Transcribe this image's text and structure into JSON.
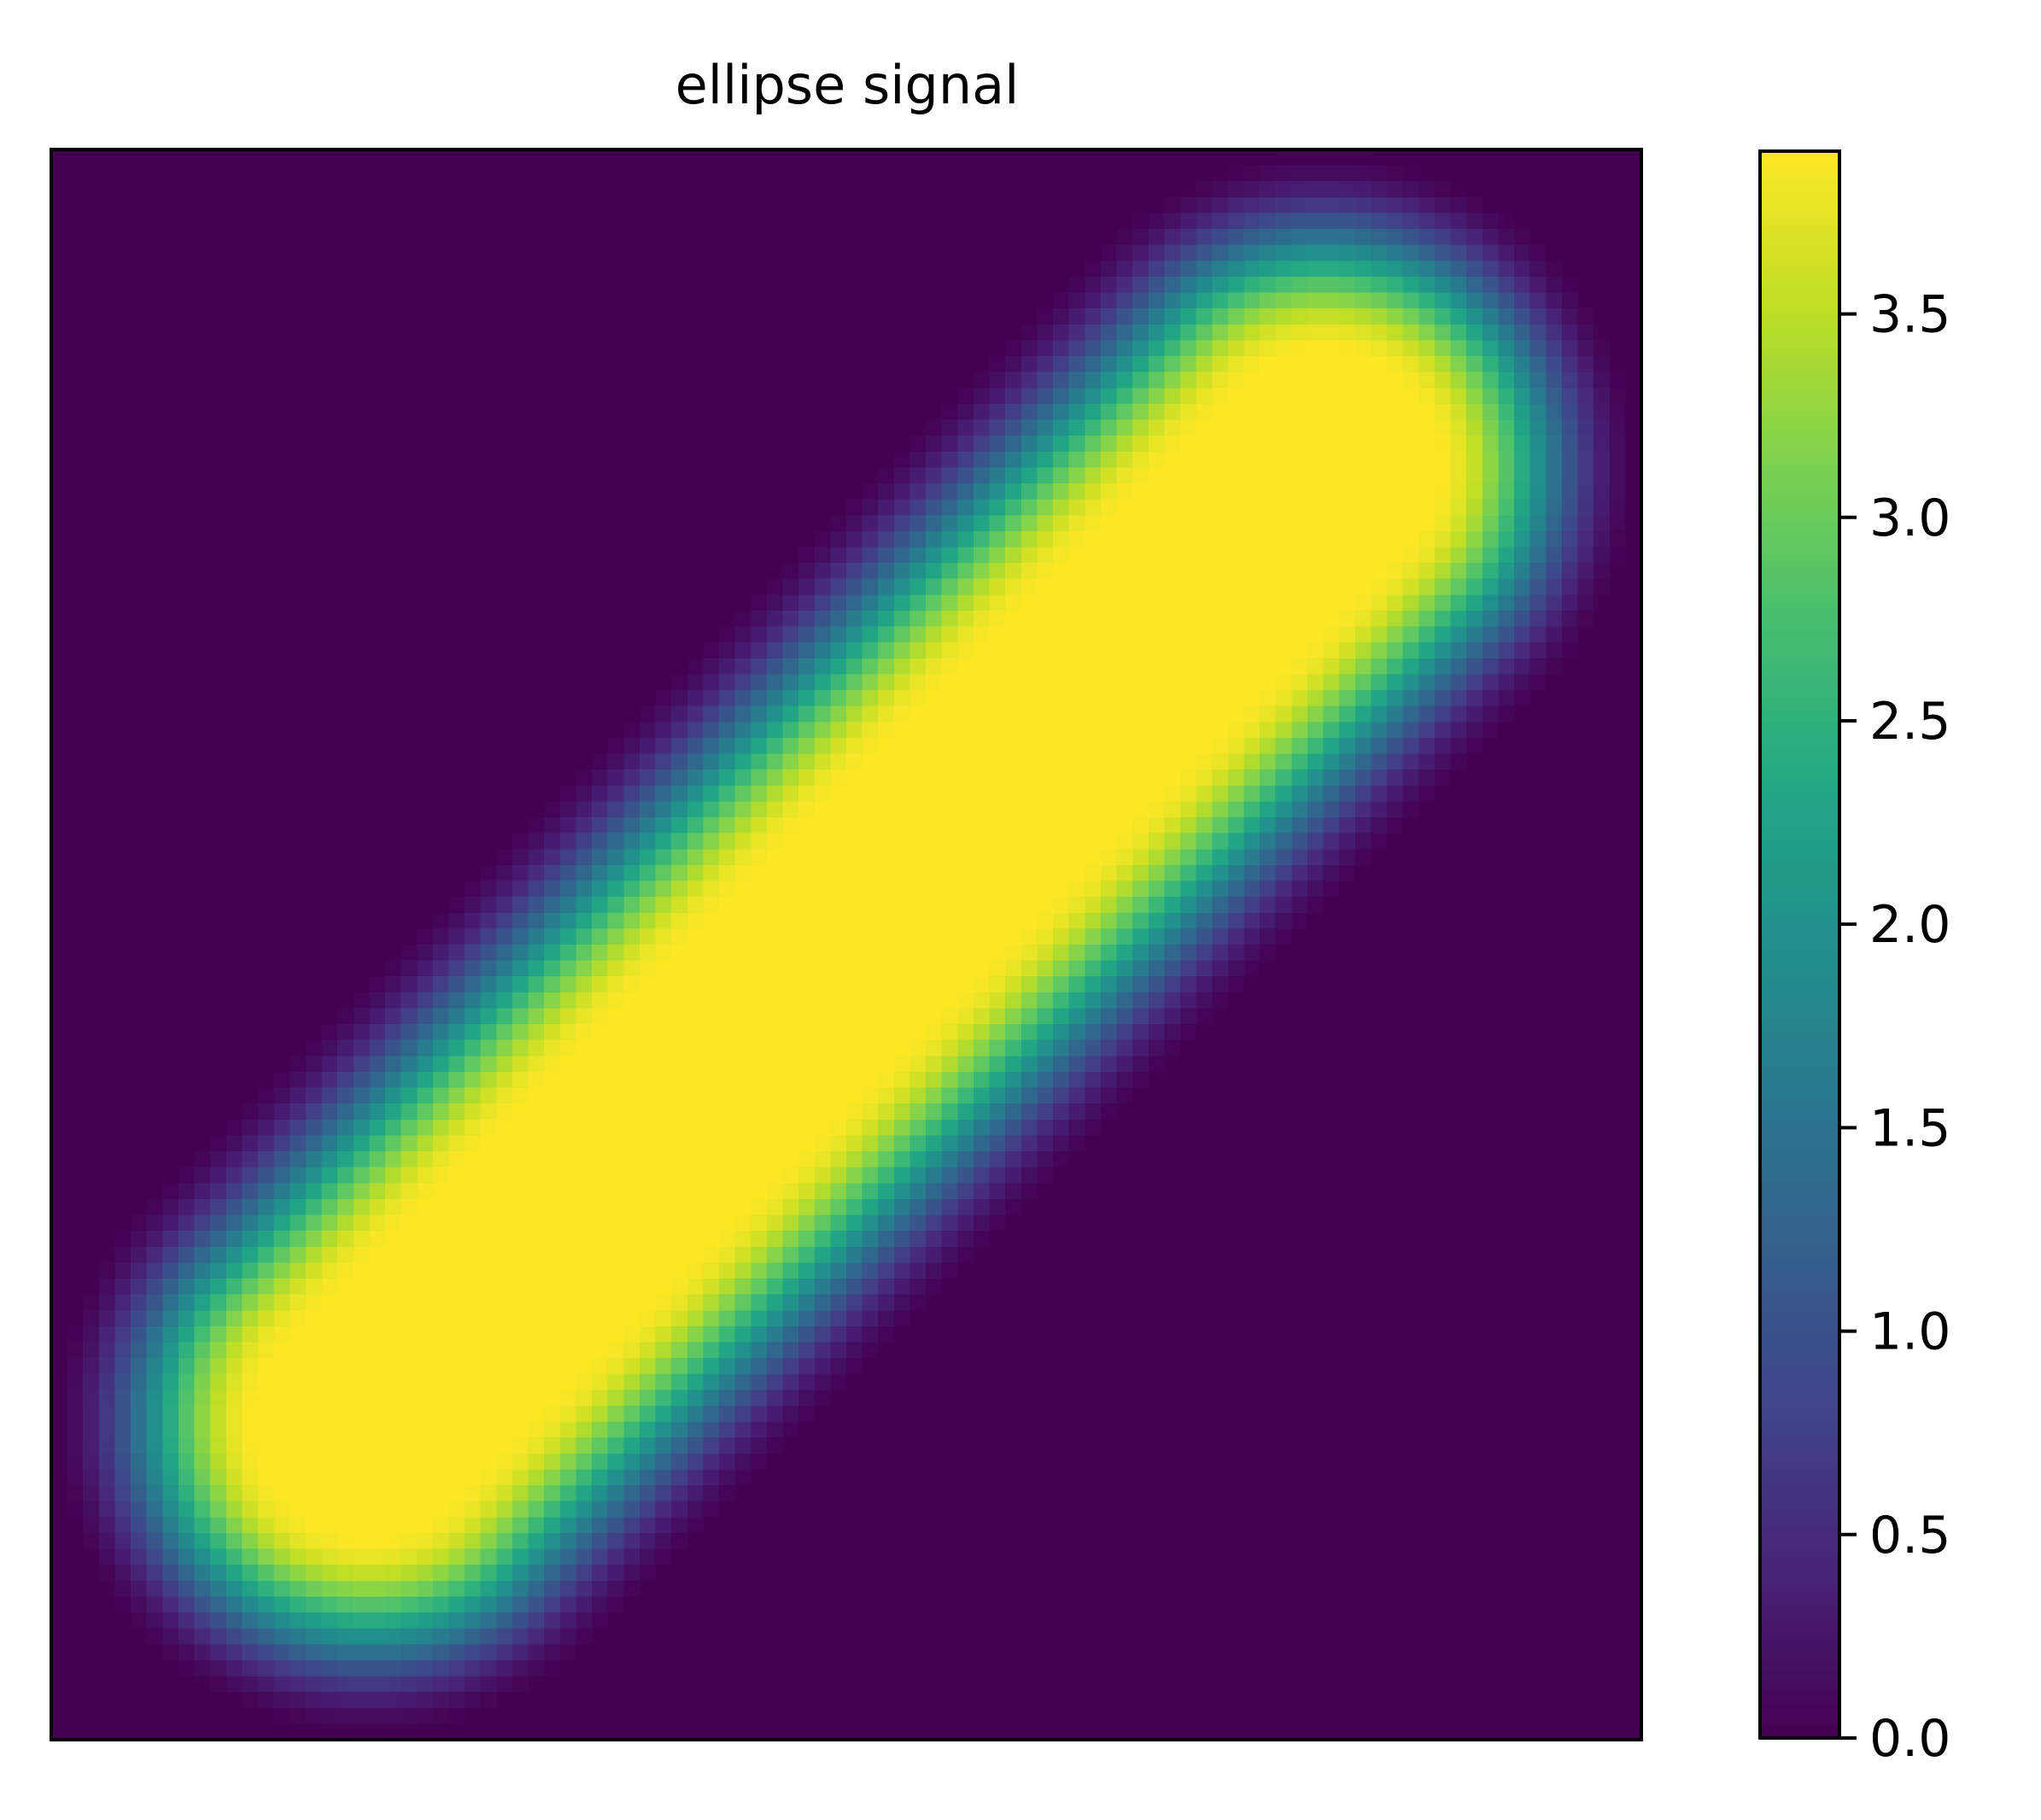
{
  "chart_data": {
    "type": "heatmap",
    "title": "ellipse signal",
    "xlabel": "",
    "ylabel": "",
    "x_ticks_visible": false,
    "y_ticks_visible": false,
    "grid": false,
    "colormap": "viridis",
    "grid_size": [
      100,
      100
    ],
    "value_range": [
      0.0,
      3.9
    ],
    "colorbar": {
      "placement": "right",
      "ticks": [
        0.0,
        0.5,
        1.0,
        1.5,
        2.0,
        2.5,
        3.0,
        3.5
      ],
      "tick_labels": [
        "0.0",
        "0.5",
        "1.0",
        "1.5",
        "2.0",
        "2.5",
        "3.0",
        "3.5"
      ]
    },
    "signal": {
      "shape": "ellipse",
      "peak_value": 3.9,
      "center": [
        0.5,
        0.5
      ],
      "major_axis_direction": "bottom-left to top-right",
      "major_axis_endpoints": [
        [
          0.2,
          0.2
        ],
        [
          0.8,
          0.8
        ]
      ],
      "minor_half_width": 0.07,
      "falloff_width": 0.13
    }
  }
}
